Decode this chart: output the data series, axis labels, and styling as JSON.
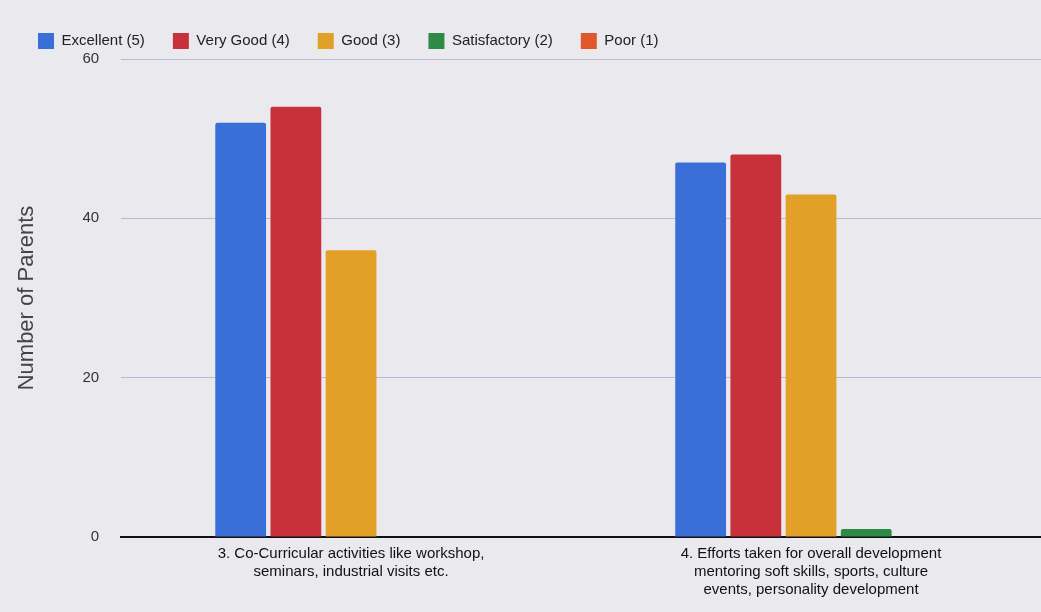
{
  "chart_data": {
    "type": "bar",
    "ylabel": "Number of Parents",
    "categories": [
      "3. Co-Curricular activities like workshop, seminars, industrial visits etc.",
      "4. Efforts taken for overall development mentoring soft skills, sports, culture events, personality development"
    ],
    "series": [
      {
        "name": "Excellent (5)",
        "color": "#3a6fd8",
        "values": [
          52,
          47
        ]
      },
      {
        "name": "Very Good (4)",
        "color": "#c8303a",
        "values": [
          54,
          48
        ]
      },
      {
        "name": "Good (3)",
        "color": "#e3a028",
        "values": [
          36,
          43
        ]
      },
      {
        "name": "Satisfactory (2)",
        "color": "#2e8b45",
        "values": [
          0,
          1
        ]
      },
      {
        "name": "Poor (1)",
        "color": "#e0582a",
        "values": [
          0,
          0
        ]
      }
    ],
    "ylim": [
      0,
      60
    ],
    "yticks": [
      0,
      20,
      40,
      60
    ],
    "grid": "y",
    "legend": "top"
  }
}
